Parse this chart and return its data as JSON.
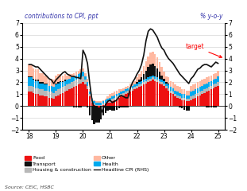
{
  "title_left": "contributions to CPI, ppt",
  "title_right": "% y-o-y",
  "source": "Source: CEIC, HSBC",
  "target_text": "target",
  "ylim": [
    -2,
    7
  ],
  "xlim": [
    17.75,
    25.25
  ],
  "xticks": [
    18,
    19,
    20,
    21,
    22,
    23,
    24,
    25
  ],
  "yticks": [
    -2,
    -1,
    0,
    1,
    2,
    3,
    4,
    5,
    6,
    7
  ],
  "colors": {
    "food": "#ee1111",
    "housing": "#b8b8b8",
    "health": "#00aaee",
    "transport": "#111111",
    "other": "#ffb8a0",
    "headline": "#111111"
  },
  "food": [
    1.2,
    1.2,
    1.1,
    1.0,
    1.0,
    0.9,
    0.9,
    0.8,
    0.8,
    0.7,
    0.7,
    0.6,
    0.8,
    0.9,
    1.0,
    1.1,
    1.2,
    1.3,
    1.4,
    1.5,
    1.6,
    1.7,
    1.8,
    1.9,
    2.0,
    1.8,
    1.4,
    0.8,
    0.3,
    0.1,
    0.0,
    -0.1,
    0.0,
    0.1,
    0.2,
    0.3,
    0.3,
    0.4,
    0.5,
    0.6,
    0.7,
    0.8,
    0.9,
    1.0,
    1.1,
    1.2,
    1.3,
    1.4,
    1.5,
    1.6,
    1.7,
    1.8,
    1.9,
    2.0,
    2.1,
    2.2,
    2.1,
    2.0,
    1.9,
    1.8,
    1.7,
    1.5,
    1.3,
    1.1,
    1.0,
    0.8,
    0.7,
    0.6,
    0.5,
    0.5,
    0.4,
    0.4,
    0.5,
    0.6,
    0.7,
    0.8,
    0.9,
    1.0,
    1.1,
    1.2,
    1.3,
    1.4,
    1.5,
    1.6,
    1.7
  ],
  "housing": [
    0.5,
    0.5,
    0.5,
    0.5,
    0.5,
    0.5,
    0.5,
    0.5,
    0.5,
    0.5,
    0.5,
    0.5,
    0.5,
    0.5,
    0.5,
    0.5,
    0.5,
    0.5,
    0.5,
    0.5,
    0.5,
    0.5,
    0.5,
    0.5,
    0.5,
    0.4,
    0.3,
    0.2,
    0.1,
    0.1,
    0.1,
    0.1,
    0.1,
    0.1,
    0.1,
    0.1,
    0.2,
    0.2,
    0.2,
    0.2,
    0.2,
    0.2,
    0.2,
    0.2,
    0.2,
    0.2,
    0.2,
    0.2,
    0.2,
    0.2,
    0.2,
    0.2,
    0.2,
    0.2,
    0.2,
    0.2,
    0.2,
    0.2,
    0.2,
    0.2,
    0.2,
    0.2,
    0.2,
    0.2,
    0.2,
    0.2,
    0.2,
    0.2,
    0.2,
    0.2,
    0.2,
    0.2,
    0.3,
    0.3,
    0.3,
    0.3,
    0.3,
    0.3,
    0.3,
    0.3,
    0.3,
    0.3,
    0.3,
    0.3,
    0.3
  ],
  "health": [
    0.7,
    0.7,
    0.6,
    0.6,
    0.6,
    0.5,
    0.5,
    0.5,
    0.5,
    0.5,
    0.5,
    0.5,
    0.5,
    0.5,
    0.5,
    0.4,
    0.4,
    0.4,
    0.4,
    0.4,
    0.4,
    0.4,
    0.4,
    0.4,
    0.4,
    0.3,
    0.3,
    0.2,
    0.2,
    0.2,
    0.2,
    0.2,
    0.2,
    0.2,
    0.2,
    0.2,
    0.2,
    0.2,
    0.2,
    0.2,
    0.2,
    0.2,
    0.2,
    0.2,
    0.2,
    0.2,
    0.2,
    0.2,
    0.2,
    0.2,
    0.2,
    0.2,
    0.2,
    0.2,
    0.2,
    0.2,
    0.2,
    0.2,
    0.2,
    0.2,
    0.2,
    0.2,
    0.3,
    0.3,
    0.3,
    0.3,
    0.3,
    0.3,
    0.3,
    0.3,
    0.3,
    0.3,
    0.4,
    0.4,
    0.4,
    0.4,
    0.4,
    0.4,
    0.4,
    0.4,
    0.4,
    0.4,
    0.4,
    0.4,
    0.5
  ],
  "transport": [
    0.1,
    0.1,
    0.1,
    0.1,
    0.1,
    0.1,
    0.1,
    0.1,
    0.1,
    0.0,
    0.0,
    0.0,
    0.1,
    0.1,
    0.1,
    0.1,
    0.1,
    0.0,
    0.0,
    0.0,
    -0.1,
    -0.1,
    -0.1,
    -0.1,
    0.0,
    0.0,
    -0.1,
    -0.8,
    -1.2,
    -1.5,
    -1.4,
    -1.3,
    -1.1,
    -0.8,
    -0.6,
    -0.4,
    -0.3,
    -0.4,
    -0.4,
    -0.3,
    -0.2,
    -0.1,
    -0.1,
    -0.1,
    -0.1,
    0.0,
    0.0,
    0.0,
    0.1,
    0.2,
    0.3,
    0.5,
    0.7,
    0.9,
    1.0,
    1.0,
    0.9,
    0.8,
    0.6,
    0.4,
    0.2,
    0.1,
    0.1,
    0.0,
    0.0,
    0.0,
    0.0,
    -0.1,
    -0.2,
    -0.3,
    -0.4,
    -0.4,
    0.0,
    0.0,
    0.0,
    0.0,
    0.0,
    0.0,
    0.0,
    -0.1,
    -0.1,
    -0.1,
    -0.1,
    -0.1,
    0.0
  ],
  "other": [
    1.0,
    1.0,
    0.9,
    0.9,
    0.9,
    0.8,
    0.8,
    0.7,
    0.7,
    0.6,
    0.6,
    0.6,
    0.7,
    0.7,
    0.6,
    0.5,
    0.5,
    0.4,
    0.4,
    0.3,
    0.3,
    0.3,
    0.3,
    0.3,
    0.3,
    0.3,
    0.3,
    0.2,
    0.1,
    0.1,
    0.1,
    0.1,
    0.1,
    0.1,
    0.1,
    0.2,
    0.3,
    0.3,
    0.3,
    0.3,
    0.3,
    0.2,
    0.2,
    0.2,
    0.2,
    0.3,
    0.3,
    0.3,
    0.4,
    0.5,
    0.6,
    0.7,
    0.8,
    0.9,
    1.0,
    1.0,
    1.0,
    0.9,
    0.8,
    0.7,
    0.6,
    0.5,
    0.5,
    0.5,
    0.5,
    0.5,
    0.5,
    0.5,
    0.4,
    0.4,
    0.4,
    0.4,
    0.5,
    0.5,
    0.5,
    0.5,
    0.5,
    0.5,
    0.5,
    0.5,
    0.5,
    0.5,
    0.5,
    0.5,
    0.5
  ],
  "headline": [
    3.5,
    3.5,
    3.4,
    3.3,
    3.3,
    3.1,
    2.9,
    2.7,
    2.5,
    2.3,
    2.2,
    1.9,
    2.2,
    2.4,
    2.6,
    2.8,
    2.9,
    2.7,
    2.6,
    2.5,
    2.5,
    2.4,
    2.4,
    2.3,
    4.7,
    4.3,
    3.6,
    1.9,
    0.5,
    -0.2,
    -0.8,
    -1.0,
    -0.6,
    -0.2,
    0.1,
    0.4,
    0.5,
    0.3,
    0.4,
    0.5,
    0.8,
    0.9,
    0.8,
    0.7,
    0.7,
    1.5,
    2.0,
    2.3,
    2.7,
    3.0,
    3.5,
    4.3,
    5.5,
    6.3,
    6.5,
    6.4,
    6.1,
    5.8,
    5.3,
    4.9,
    4.7,
    4.3,
    4.0,
    3.8,
    3.6,
    3.3,
    3.0,
    2.7,
    2.5,
    2.3,
    2.1,
    1.9,
    2.3,
    2.5,
    2.8,
    3.1,
    3.2,
    3.4,
    3.5,
    3.5,
    3.4,
    3.3,
    3.5,
    3.7,
    3.6
  ]
}
